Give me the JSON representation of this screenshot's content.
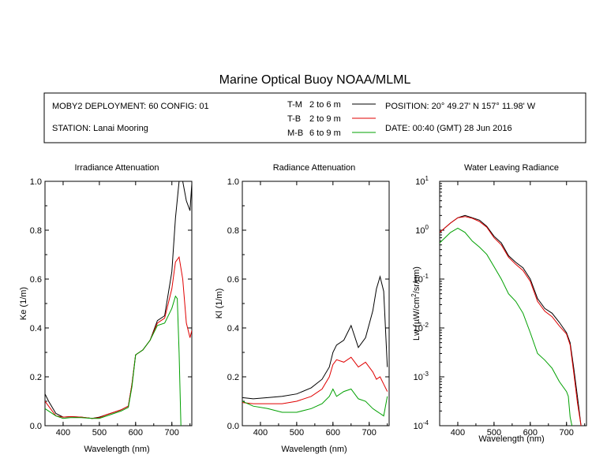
{
  "title": "Marine Optical Buoy NOAA/MLML",
  "info": {
    "deployment": "MOBY2 DEPLOYMENT: 60 CONFIG: 01",
    "station": "STATION: Lanai Mooring",
    "position": "POSITION: 20° 49.27' N   157° 11.98' W",
    "date": "DATE: 00:40 (GMT) 28 Jun 2016"
  },
  "legend": [
    {
      "code": "T-M",
      "range": "2 to 6  m",
      "color": "#000000"
    },
    {
      "code": "T-B",
      "range": "2 to 9  m",
      "color": "#e00000"
    },
    {
      "code": "M-B",
      "range": "6 to 9  m",
      "color": "#00a000"
    }
  ],
  "chart_data": [
    {
      "type": "line",
      "title": "Irradiance Attenuation",
      "xlabel": "Wavelength (nm)",
      "ylabel": "Ke  (1/m)",
      "xlim": [
        350,
        755
      ],
      "ylim": [
        0,
        1.0
      ],
      "xticks": [
        "400",
        "500",
        "600",
        "700"
      ],
      "yticks": [
        "0.0",
        "0.2",
        "0.4",
        "0.6",
        "0.8",
        "1.0"
      ],
      "series": [
        {
          "name": "T-M",
          "color": "#000000",
          "x": [
            350,
            360,
            380,
            400,
            420,
            450,
            480,
            500,
            520,
            540,
            560,
            580,
            590,
            600,
            620,
            640,
            660,
            680,
            700,
            710,
            720,
            730,
            740,
            750,
            755
          ],
          "y": [
            0.13,
            0.1,
            0.05,
            0.035,
            0.037,
            0.035,
            0.03,
            0.035,
            0.045,
            0.055,
            0.065,
            0.08,
            0.17,
            0.29,
            0.31,
            0.35,
            0.43,
            0.45,
            0.63,
            0.85,
            1.02,
            1.05,
            0.92,
            0.88,
            0.99
          ]
        },
        {
          "name": "T-B",
          "color": "#e00000",
          "x": [
            350,
            360,
            380,
            400,
            420,
            450,
            480,
            500,
            520,
            540,
            560,
            580,
            590,
            600,
            620,
            640,
            660,
            680,
            700,
            710,
            720,
            730,
            740,
            750,
            755
          ],
          "y": [
            0.1,
            0.08,
            0.04,
            0.035,
            0.037,
            0.035,
            0.03,
            0.033,
            0.045,
            0.055,
            0.065,
            0.08,
            0.17,
            0.29,
            0.31,
            0.35,
            0.42,
            0.44,
            0.56,
            0.67,
            0.69,
            0.6,
            0.42,
            0.36,
            0.39
          ]
        },
        {
          "name": "M-B",
          "color": "#00a000",
          "x": [
            350,
            360,
            380,
            400,
            420,
            450,
            480,
            500,
            520,
            540,
            560,
            580,
            590,
            600,
            620,
            640,
            660,
            680,
            700,
            710,
            715,
            720,
            725
          ],
          "y": [
            0.07,
            0.06,
            0.04,
            0.03,
            0.033,
            0.033,
            0.03,
            0.03,
            0.04,
            0.05,
            0.06,
            0.075,
            0.16,
            0.29,
            0.31,
            0.35,
            0.41,
            0.42,
            0.48,
            0.53,
            0.52,
            0.3,
            0.0
          ]
        }
      ]
    },
    {
      "type": "line",
      "title": "Radiance Attenuation",
      "xlabel": "Wavelength (nm)",
      "ylabel": "Kl  (1/m)",
      "xlim": [
        350,
        755
      ],
      "ylim": [
        0,
        1.0
      ],
      "xticks": [
        "400",
        "500",
        "600",
        "700"
      ],
      "yticks": [
        "0.0",
        "0.2",
        "0.4",
        "0.6",
        "0.8",
        "1.0"
      ],
      "series": [
        {
          "name": "T-M",
          "color": "#000000",
          "x": [
            350,
            380,
            420,
            460,
            500,
            540,
            570,
            590,
            600,
            610,
            630,
            650,
            670,
            690,
            710,
            720,
            730,
            740,
            750
          ],
          "y": [
            0.115,
            0.11,
            0.115,
            0.12,
            0.13,
            0.155,
            0.19,
            0.24,
            0.3,
            0.33,
            0.35,
            0.41,
            0.32,
            0.36,
            0.47,
            0.56,
            0.61,
            0.55,
            0.24
          ]
        },
        {
          "name": "T-B",
          "color": "#e00000",
          "x": [
            350,
            380,
            420,
            460,
            500,
            540,
            570,
            590,
            600,
            610,
            630,
            650,
            670,
            690,
            710,
            720,
            730,
            740,
            750
          ],
          "y": [
            0.095,
            0.09,
            0.09,
            0.09,
            0.1,
            0.12,
            0.15,
            0.2,
            0.25,
            0.27,
            0.26,
            0.28,
            0.24,
            0.26,
            0.22,
            0.19,
            0.2,
            0.17,
            0.14
          ]
        },
        {
          "name": "M-B",
          "color": "#00a000",
          "x": [
            350,
            380,
            420,
            460,
            500,
            540,
            570,
            590,
            600,
            610,
            630,
            650,
            670,
            690,
            710,
            720,
            730,
            740,
            750
          ],
          "y": [
            0.1,
            0.08,
            0.07,
            0.055,
            0.055,
            0.07,
            0.09,
            0.12,
            0.15,
            0.12,
            0.14,
            0.15,
            0.11,
            0.1,
            0.07,
            0.06,
            0.05,
            0.04,
            0.12
          ]
        }
      ]
    },
    {
      "type": "line",
      "title": "Water Leaving Radiance",
      "xlabel": "Wavelength (nm)",
      "ylabel": "Lw  (µW/cm²/sr/nm)",
      "ylabel_base": "Lw  (µW/cm",
      "ylabel_sup": "2",
      "ylabel_tail": "/sr/nm)",
      "yscale": "log",
      "xlim": [
        350,
        755
      ],
      "ylim_exp": [
        -4,
        1
      ],
      "xticks": [
        "400",
        "500",
        "600",
        "700"
      ],
      "ytick_base": "10",
      "ytick_exps": [
        "-4",
        "-3",
        "-2",
        "-1",
        "0",
        "1"
      ],
      "series": [
        {
          "name": "T-M",
          "color": "#000000",
          "x": [
            350,
            380,
            400,
            420,
            440,
            460,
            480,
            500,
            520,
            540,
            560,
            580,
            600,
            620,
            640,
            660,
            680,
            700,
            710,
            720,
            730,
            740
          ],
          "y": [
            0.9,
            1.4,
            1.8,
            2.0,
            1.8,
            1.6,
            1.2,
            0.75,
            0.55,
            0.3,
            0.22,
            0.17,
            0.1,
            0.04,
            0.025,
            0.02,
            0.013,
            0.008,
            0.005,
            0.0015,
            0.0004,
            0.0001
          ]
        },
        {
          "name": "T-B",
          "color": "#e00000",
          "x": [
            350,
            380,
            400,
            420,
            440,
            460,
            480,
            500,
            520,
            540,
            560,
            580,
            600,
            620,
            640,
            660,
            680,
            700,
            710,
            720,
            730,
            740
          ],
          "y": [
            0.9,
            1.4,
            1.8,
            1.9,
            1.75,
            1.5,
            1.15,
            0.7,
            0.5,
            0.28,
            0.2,
            0.15,
            0.09,
            0.035,
            0.022,
            0.017,
            0.011,
            0.0075,
            0.0045,
            0.0012,
            0.0003,
            0.0001
          ]
        },
        {
          "name": "M-B",
          "color": "#00a000",
          "x": [
            350,
            380,
            400,
            420,
            440,
            460,
            480,
            500,
            520,
            540,
            560,
            580,
            600,
            620,
            640,
            660,
            680,
            700,
            705,
            710,
            715
          ],
          "y": [
            0.55,
            0.9,
            1.1,
            0.9,
            0.6,
            0.45,
            0.32,
            0.18,
            0.1,
            0.05,
            0.035,
            0.02,
            0.008,
            0.003,
            0.0022,
            0.0015,
            0.0008,
            0.0005,
            0.0004,
            0.00015,
            0.0001
          ]
        }
      ]
    }
  ]
}
